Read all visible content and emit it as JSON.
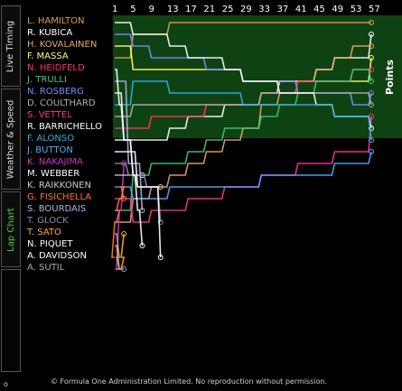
{
  "sidebar": {
    "tabs": [
      {
        "label": "Live Timing"
      },
      {
        "label": "Weather & Speed"
      },
      {
        "label": "Lap Chart"
      }
    ],
    "corner": "o"
  },
  "lap_headers": [
    "1",
    "5",
    "9",
    "13",
    "17",
    "21",
    "25",
    "29",
    "33",
    "37",
    "41",
    "45",
    "49",
    "53",
    "57"
  ],
  "points_label": "Points",
  "colors": {
    "accent": "#3fd13f",
    "points_bg": "#0f4212",
    "background": "#000000"
  },
  "drivers": [
    {
      "name": "L. HAMILTON",
      "color": "#d8a050"
    },
    {
      "name": "R. KUBICA",
      "color": "#ffffff"
    },
    {
      "name": "H. KOVALAINEN",
      "color": "#e8a864"
    },
    {
      "name": "F. MASSA",
      "color": "#ffff66"
    },
    {
      "name": "N. HEIDFELD",
      "color": "#ff3366"
    },
    {
      "name": "J. TRULLI",
      "color": "#3acb7a"
    },
    {
      "name": "N. ROSBERG",
      "color": "#7a8cff"
    },
    {
      "name": "D. COULTHARD",
      "color": "#b0b0b0"
    },
    {
      "name": "S. VETTEL",
      "color": "#ff3399"
    },
    {
      "name": "R. BARRICHELLO",
      "color": "#ffffff"
    },
    {
      "name": "F. ALONSO",
      "color": "#29b3e6"
    },
    {
      "name": "J. BUTTON",
      "color": "#55aaff"
    },
    {
      "name": "K. NAKAJIMA",
      "color": "#cc33cc"
    },
    {
      "name": "M. WEBBER",
      "color": "#ffffff"
    },
    {
      "name": "K. RAIKKONEN",
      "color": "#c8c8c8"
    },
    {
      "name": "G. FISICHELLA",
      "color": "#ff7733"
    },
    {
      "name": "S. BOURDAIS",
      "color": "#aab8e0"
    },
    {
      "name": "T. GLOCK",
      "color": "#8a8aa8"
    },
    {
      "name": "T. SATO",
      "color": "#ffaa33"
    },
    {
      "name": "N. PIQUET",
      "color": "#ffffff"
    },
    {
      "name": "A. DAVIDSON",
      "color": "#ffffff"
    },
    {
      "name": "A. SUTIL",
      "color": "#a8a8a8"
    }
  ],
  "copyright": "© Formula One Administration Limited. No reproduction without permission."
}
